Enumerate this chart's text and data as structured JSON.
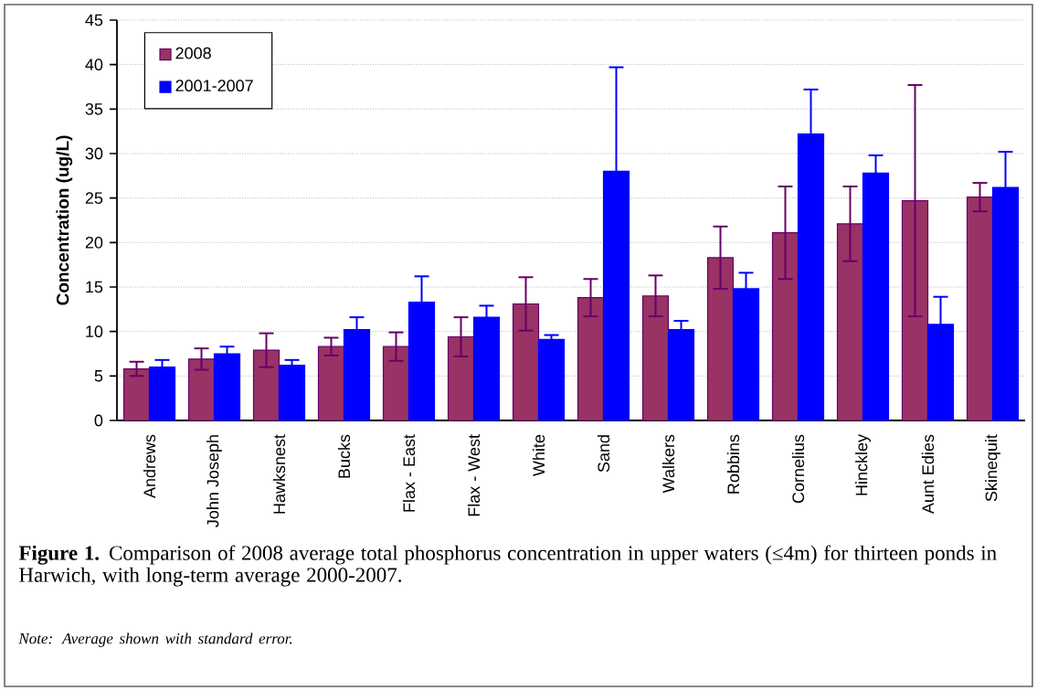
{
  "chart_data": {
    "type": "bar",
    "ylabel": "Concentration (ug/L)",
    "categories": [
      "Andrews",
      "John Joseph",
      "Hawksnest",
      "Bucks",
      "Flax - East",
      "Flax - West",
      "White",
      "Sand",
      "Walkers",
      "Robbins",
      "Cornelius",
      "Hinckley",
      "Aunt Edies",
      "Skinequit"
    ],
    "series": [
      {
        "name": "2008",
        "color": "#993366",
        "values": [
          5.8,
          6.9,
          7.9,
          8.3,
          8.3,
          9.4,
          13.1,
          13.8,
          14.0,
          18.3,
          21.1,
          22.1,
          24.7,
          25.1
        ],
        "errors": [
          0.8,
          1.2,
          1.9,
          1.0,
          1.6,
          2.2,
          3.0,
          2.1,
          2.3,
          3.5,
          5.2,
          4.2,
          13.0,
          1.6
        ]
      },
      {
        "name": "2001-2007",
        "color": "#0000ff",
        "values": [
          6.0,
          7.5,
          6.2,
          10.2,
          13.3,
          11.6,
          9.1,
          28.0,
          10.2,
          14.8,
          32.2,
          27.8,
          10.8,
          26.2
        ],
        "errors": [
          0.8,
          0.8,
          0.6,
          1.4,
          2.9,
          1.3,
          0.5,
          11.7,
          1.0,
          1.8,
          5.0,
          2.0,
          3.1,
          4.0
        ]
      }
    ],
    "ylim": [
      0,
      45
    ],
    "yticks": [
      0,
      5,
      10,
      15,
      20,
      25,
      30,
      35,
      40,
      45
    ],
    "grid": "y",
    "legend": "top left",
    "annotations": [
      "**Figure 1.**  Comparison of 2008 average total phosphorus concentration in upper waters (≤4m) for thirteen ponds in Harwich, with long-term average 2000-2007.",
      "Note:  Average shown with standard error."
    ]
  }
}
